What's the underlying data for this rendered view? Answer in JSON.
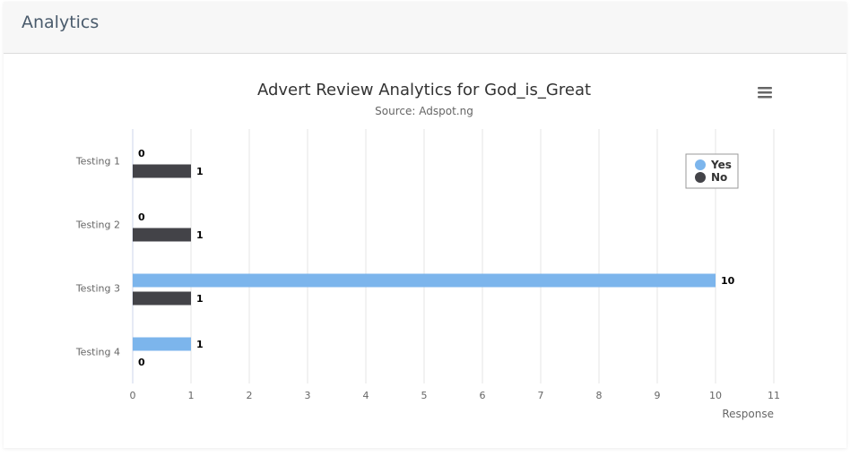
{
  "header": {
    "title": "Analytics"
  },
  "chart_data": {
    "type": "bar",
    "orientation": "horizontal",
    "title": "Advert Review Analytics for God_is_Great",
    "subtitle": "Source: Adspot.ng",
    "categories": [
      "Testing 1",
      "Testing 2",
      "Testing 3",
      "Testing 4"
    ],
    "series": [
      {
        "name": "Yes",
        "color": "#7cb5ec",
        "values": [
          0,
          0,
          10,
          1
        ]
      },
      {
        "name": "No",
        "color": "#434348",
        "values": [
          1,
          1,
          1,
          0
        ]
      }
    ],
    "xlabel": "Response",
    "ylabel": "",
    "xlim": [
      0,
      11
    ],
    "ticks": [
      "0",
      "1",
      "2",
      "3",
      "4",
      "5",
      "6",
      "7",
      "8",
      "9",
      "10",
      "11"
    ],
    "grid": true,
    "legend_position": "top-right",
    "data_labels": true
  },
  "menu": {
    "icon": "hamburger-menu-icon"
  }
}
